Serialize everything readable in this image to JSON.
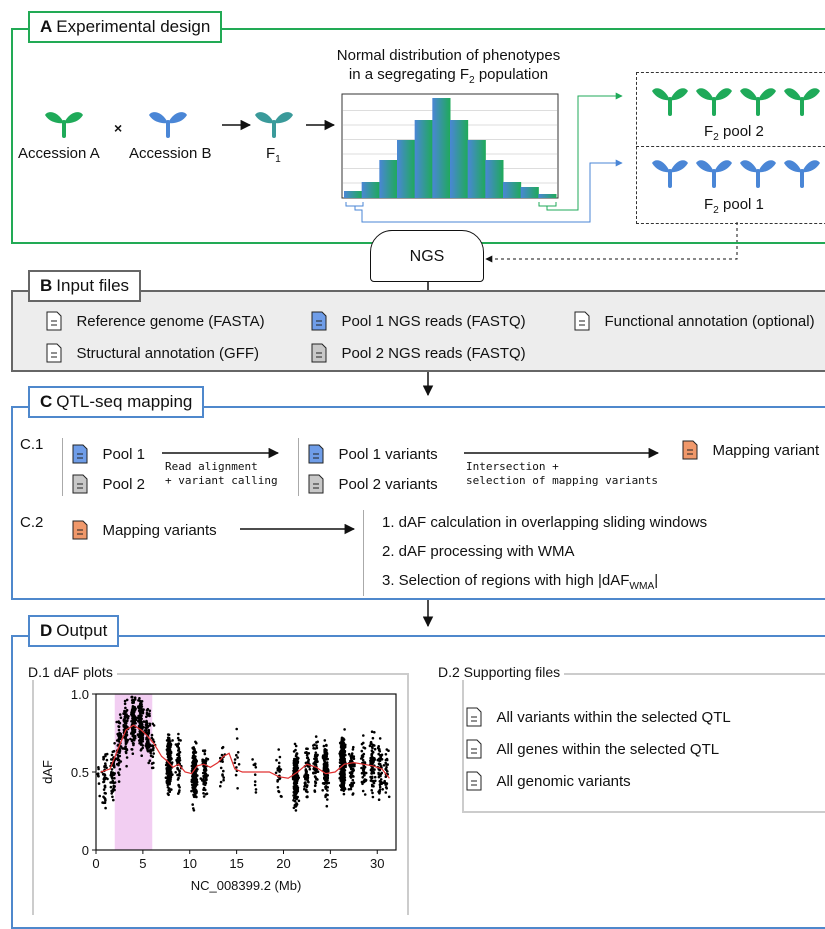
{
  "colors": {
    "green": "#1faa59",
    "blue": "#4a86d6",
    "teal": "#3a9a9a",
    "orange": "#f0986a",
    "section_a_border": "#22aa55",
    "section_b_border": "#666666",
    "section_b_fill": "#ededed",
    "section_cd_border": "#4f88cc",
    "highlight": "#f2cef2",
    "dafline": "#e03030"
  },
  "section_a": {
    "letter": "A",
    "title": "Experimental design",
    "accession_a": "Accession A",
    "cross": "×",
    "accession_b": "Accession B",
    "f1": "F",
    "f1_sub": "1",
    "hist_title_line1": "Normal distribution of phenotypes",
    "hist_title_line2_pre": "in a segregating F",
    "hist_title_line2_sub": "2",
    "hist_title_line2_post": " population",
    "histogram": {
      "bars": [
        0.07,
        0.16,
        0.38,
        0.58,
        0.78,
        1.0,
        0.78,
        0.58,
        0.38,
        0.16,
        0.11,
        0.04
      ]
    },
    "pool2_pre": "F",
    "pool2_sub": "2",
    "pool2_post": " pool 2",
    "pool1_pre": "F",
    "pool1_sub": "2",
    "pool1_post": " pool 1"
  },
  "ngs": "NGS",
  "section_b": {
    "letter": "B",
    "title": "Input files",
    "files": [
      {
        "label": "Reference genome (FASTA)",
        "icon": "document-icon"
      },
      {
        "label": "Pool 1 NGS reads (FASTQ)",
        "icon": "blue-document-icon"
      },
      {
        "label": "Functional annotation (optional)",
        "icon": "document-icon"
      },
      {
        "label": "Structural annotation (GFF)",
        "icon": "document-icon"
      },
      {
        "label": "Pool 2 NGS reads (FASTQ)",
        "icon": "gray-document-icon"
      }
    ]
  },
  "section_c": {
    "letter": "C",
    "title": "QTL-seq mapping",
    "c1_label": "C.1",
    "c1_pool1": "Pool 1",
    "c1_pool2": "Pool 2",
    "c1_arrow1_line1": "Read alignment",
    "c1_arrow1_line2": "+ variant calling",
    "c1_pool1_variants": "Pool 1 variants",
    "c1_pool2_variants": "Pool 2 variants",
    "c1_arrow2_line1": "Intersection +",
    "c1_arrow2_line2": "selection of mapping variants",
    "c1_mapping_variants": "Mapping variant",
    "c2_label": "C.2",
    "c2_mapping_variants": "Mapping variants",
    "c2_step1": "1. dAF calculation in overlapping sliding windows",
    "c2_step2": "2. dAF processing with WMA",
    "c2_step3_pre": "3. Selection of regions with high |dAF",
    "c2_step3_sub": "WMA",
    "c2_step3_post": "|"
  },
  "section_d": {
    "letter": "D",
    "title": "Output",
    "d1_label": "D.1 dAF plots",
    "d2_label": "D.2 Supporting files",
    "supporting_files": [
      "All variants within the selected QTL",
      "All genes within the selected QTL",
      "All genomic variants"
    ]
  },
  "chart_data": {
    "type": "scatter",
    "xlabel": "NC_008399.2 (Mb)",
    "ylabel": "dAF",
    "xlim": [
      0,
      32
    ],
    "ylim": [
      0,
      1
    ],
    "xticks": [
      "0",
      "5",
      "10",
      "15",
      "20",
      "25",
      "30"
    ],
    "yticks": [
      "0",
      "0.5",
      "1.0"
    ],
    "highlight_region": [
      2.0,
      6.0
    ],
    "wma_line": {
      "x": [
        0.5,
        1.5,
        2.5,
        3.2,
        4.0,
        4.8,
        5.5,
        6.2,
        7.0,
        7.6,
        8.2,
        8.8,
        9.5,
        10.2,
        10.8,
        11.5,
        12.2,
        13.0,
        13.6,
        14.2,
        14.8,
        15.6,
        16.5,
        17.5,
        18.5,
        19.5,
        20.5,
        21.5,
        22.5,
        23.5,
        24.5,
        25.5,
        26.5,
        27.5,
        28.5,
        29.5,
        30.5,
        31.3
      ],
      "y": [
        0.5,
        0.52,
        0.67,
        0.77,
        0.8,
        0.77,
        0.73,
        0.68,
        0.6,
        0.57,
        0.53,
        0.55,
        0.5,
        0.49,
        0.54,
        0.55,
        0.53,
        0.56,
        0.6,
        0.62,
        0.52,
        0.5,
        0.5,
        0.5,
        0.5,
        0.47,
        0.46,
        0.5,
        0.55,
        0.53,
        0.49,
        0.5,
        0.55,
        0.56,
        0.55,
        0.54,
        0.52,
        0.46
      ]
    },
    "point_clusters": [
      {
        "x": 0.3,
        "y": 0.5,
        "n": 8
      },
      {
        "x": 1.0,
        "y": 0.45,
        "n": 40
      },
      {
        "x": 1.8,
        "y": 0.5,
        "n": 55
      },
      {
        "x": 2.5,
        "y": 0.68,
        "n": 60
      },
      {
        "x": 3.2,
        "y": 0.77,
        "n": 90
      },
      {
        "x": 4.0,
        "y": 0.82,
        "n": 120
      },
      {
        "x": 4.8,
        "y": 0.8,
        "n": 130
      },
      {
        "x": 5.5,
        "y": 0.75,
        "n": 70
      },
      {
        "x": 6.0,
        "y": 0.7,
        "n": 25
      },
      {
        "x": 7.8,
        "y": 0.55,
        "n": 220
      },
      {
        "x": 8.8,
        "y": 0.55,
        "n": 60
      },
      {
        "x": 10.5,
        "y": 0.5,
        "n": 260
      },
      {
        "x": 11.6,
        "y": 0.52,
        "n": 70
      },
      {
        "x": 13.5,
        "y": 0.57,
        "n": 20
      },
      {
        "x": 15.0,
        "y": 0.52,
        "n": 12
      },
      {
        "x": 17.0,
        "y": 0.5,
        "n": 10
      },
      {
        "x": 19.5,
        "y": 0.5,
        "n": 25
      },
      {
        "x": 21.3,
        "y": 0.46,
        "n": 240
      },
      {
        "x": 22.5,
        "y": 0.52,
        "n": 60
      },
      {
        "x": 23.4,
        "y": 0.55,
        "n": 60
      },
      {
        "x": 24.5,
        "y": 0.52,
        "n": 130
      },
      {
        "x": 26.3,
        "y": 0.55,
        "n": 280
      },
      {
        "x": 27.3,
        "y": 0.52,
        "n": 60
      },
      {
        "x": 28.5,
        "y": 0.55,
        "n": 50
      },
      {
        "x": 29.5,
        "y": 0.54,
        "n": 80
      },
      {
        "x": 30.3,
        "y": 0.52,
        "n": 60
      },
      {
        "x": 31.0,
        "y": 0.5,
        "n": 30
      }
    ]
  }
}
